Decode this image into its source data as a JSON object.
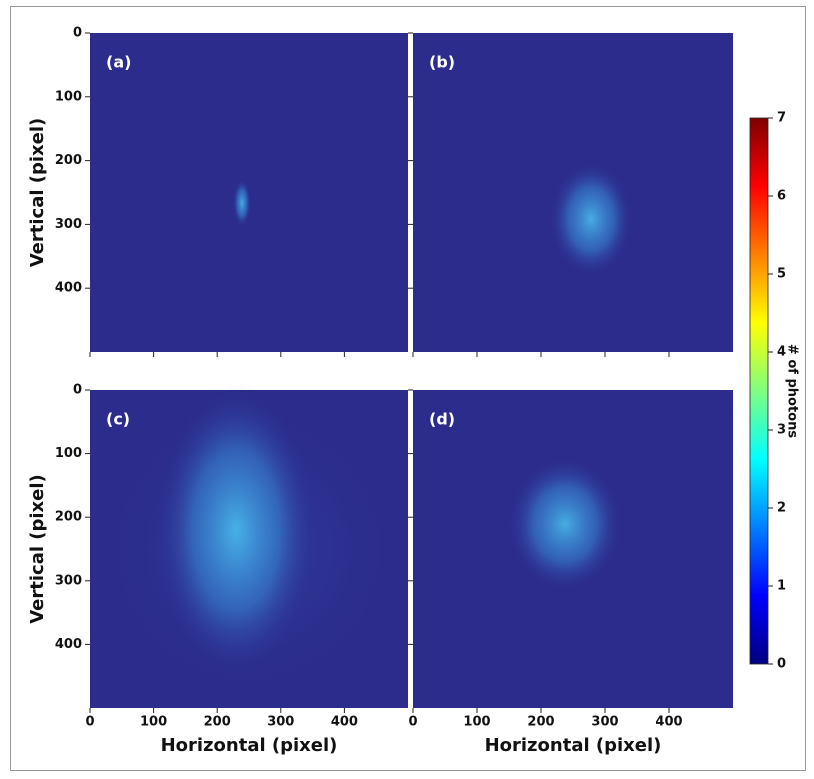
{
  "chart_data": [
    {
      "type": "heatmap",
      "label": "(a)",
      "xlim": [
        0,
        500
      ],
      "ylim": [
        0,
        500
      ],
      "xticks": [
        0,
        100,
        200,
        300,
        400
      ],
      "yticks": [
        0,
        100,
        200,
        300,
        400
      ],
      "xticklabels": false,
      "yticklabels": true,
      "ylabel": "Vertical (pixel)"
    },
    {
      "type": "heatmap",
      "label": "(b)",
      "xlim": [
        0,
        500
      ],
      "ylim": [
        0,
        500
      ],
      "xticks": [
        0,
        100,
        200,
        300,
        400
      ],
      "yticks": [
        0,
        100,
        200,
        300,
        400
      ],
      "xticklabels": false,
      "yticklabels": false
    },
    {
      "type": "heatmap",
      "label": "(c)",
      "xlim": [
        0,
        500
      ],
      "ylim": [
        0,
        500
      ],
      "xticks": [
        0,
        100,
        200,
        300,
        400
      ],
      "yticks": [
        0,
        100,
        200,
        300,
        400
      ],
      "xticklabels": true,
      "yticklabels": true,
      "xlabel": "Horizontal (pixel)",
      "ylabel": "Vertical (pixel)"
    },
    {
      "type": "heatmap",
      "label": "(d)",
      "xlim": [
        0,
        500
      ],
      "ylim": [
        0,
        500
      ],
      "xticks": [
        0,
        100,
        200,
        300,
        400
      ],
      "yticks": [
        0,
        100,
        200,
        300,
        400
      ],
      "xticklabels": true,
      "yticklabels": false,
      "xlabel": "Horizontal (pixel)"
    }
  ],
  "colorbar": {
    "label": "# of photons",
    "lim": [
      0,
      7
    ],
    "ticks": [
      0,
      1,
      2,
      3,
      4,
      5,
      6,
      7
    ],
    "colormap": "jet"
  }
}
